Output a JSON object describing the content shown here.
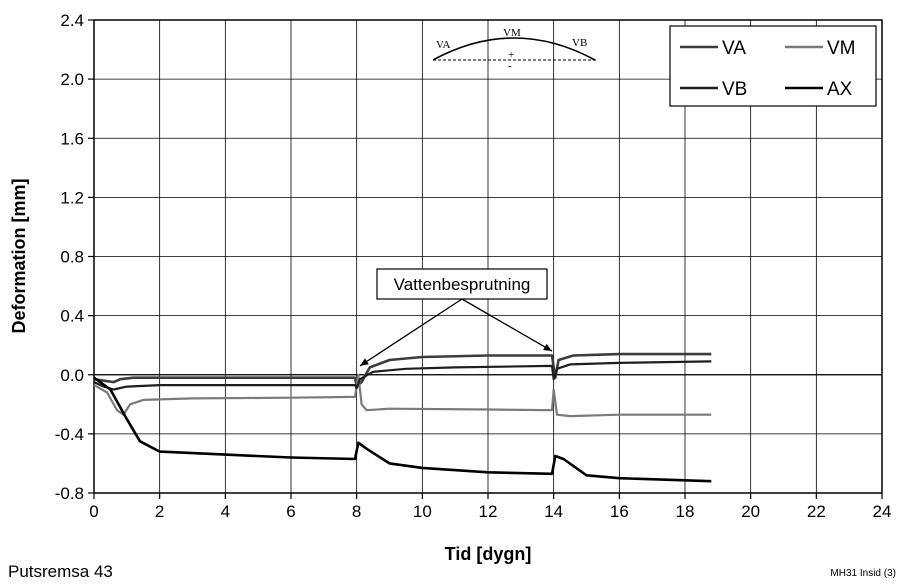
{
  "chart_data": {
    "type": "line",
    "title": "",
    "xlabel": "Tid [dygn]",
    "ylabel": "Deformation [mm]",
    "xlim": [
      0,
      24
    ],
    "ylim": [
      -0.8,
      2.4
    ],
    "xticks": [
      0,
      2,
      4,
      6,
      8,
      10,
      12,
      14,
      16,
      18,
      20,
      22,
      24
    ],
    "yticks": [
      -0.8,
      -0.4,
      0.0,
      0.4,
      0.8,
      1.2,
      1.6,
      2.0,
      2.4
    ],
    "ytick_labels": [
      "-0.8",
      "-0.4",
      "0.0",
      "0.4",
      "0.8",
      "1.2",
      "1.6",
      "2.0",
      "2.4"
    ],
    "grid": true,
    "legend_position": "top-right",
    "series": [
      {
        "name": "VA",
        "color": "#3c3c3c",
        "width": 2.6,
        "points": [
          [
            0,
            -0.03
          ],
          [
            0.3,
            -0.04
          ],
          [
            0.6,
            -0.05
          ],
          [
            0.8,
            -0.03
          ],
          [
            1.2,
            -0.02
          ],
          [
            4,
            -0.02
          ],
          [
            7.95,
            -0.02
          ],
          [
            8.0,
            -0.08
          ],
          [
            8.15,
            -0.05
          ],
          [
            8.4,
            0.05
          ],
          [
            9,
            0.1
          ],
          [
            10,
            0.12
          ],
          [
            12,
            0.13
          ],
          [
            13.95,
            0.13
          ],
          [
            14.0,
            0.05
          ],
          [
            14.05,
            -0.02
          ],
          [
            14.15,
            0.1
          ],
          [
            14.6,
            0.13
          ],
          [
            16,
            0.14
          ],
          [
            18.8,
            0.14
          ]
        ]
      },
      {
        "name": "VM",
        "color": "#7a7a7a",
        "width": 2.2,
        "points": [
          [
            0,
            -0.07
          ],
          [
            0.4,
            -0.12
          ],
          [
            0.7,
            -0.24
          ],
          [
            0.9,
            -0.27
          ],
          [
            1.1,
            -0.2
          ],
          [
            1.5,
            -0.17
          ],
          [
            3,
            -0.16
          ],
          [
            6,
            -0.155
          ],
          [
            7.95,
            -0.15
          ],
          [
            8.05,
            0.0
          ],
          [
            8.15,
            -0.2
          ],
          [
            8.3,
            -0.24
          ],
          [
            9,
            -0.23
          ],
          [
            12,
            -0.235
          ],
          [
            13.95,
            -0.24
          ],
          [
            14.0,
            -0.1
          ],
          [
            14.1,
            -0.27
          ],
          [
            14.5,
            -0.28
          ],
          [
            16,
            -0.27
          ],
          [
            18.8,
            -0.27
          ]
        ]
      },
      {
        "name": "VB",
        "color": "#1e1e1e",
        "width": 2.2,
        "points": [
          [
            0,
            -0.05
          ],
          [
            0.3,
            -0.08
          ],
          [
            0.6,
            -0.1
          ],
          [
            1.0,
            -0.08
          ],
          [
            2,
            -0.07
          ],
          [
            5,
            -0.07
          ],
          [
            7.95,
            -0.07
          ],
          [
            8.0,
            -0.09
          ],
          [
            8.1,
            -0.03
          ],
          [
            8.5,
            0.02
          ],
          [
            9.5,
            0.04
          ],
          [
            11,
            0.05
          ],
          [
            13.95,
            0.06
          ],
          [
            14.0,
            -0.03
          ],
          [
            14.1,
            0.04
          ],
          [
            14.5,
            0.07
          ],
          [
            16,
            0.08
          ],
          [
            18.8,
            0.09
          ]
        ]
      },
      {
        "name": "AX",
        "color": "#000000",
        "width": 2.6,
        "points": [
          [
            0,
            -0.02
          ],
          [
            0.5,
            -0.1
          ],
          [
            1.0,
            -0.3
          ],
          [
            1.4,
            -0.45
          ],
          [
            2,
            -0.52
          ],
          [
            4,
            -0.54
          ],
          [
            6,
            -0.56
          ],
          [
            7.95,
            -0.57
          ],
          [
            8.05,
            -0.46
          ],
          [
            8.3,
            -0.5
          ],
          [
            9,
            -0.6
          ],
          [
            10,
            -0.63
          ],
          [
            12,
            -0.66
          ],
          [
            13.95,
            -0.67
          ],
          [
            14.05,
            -0.55
          ],
          [
            14.3,
            -0.57
          ],
          [
            15,
            -0.68
          ],
          [
            16,
            -0.7
          ],
          [
            18.8,
            -0.72
          ]
        ]
      }
    ],
    "annotations": [
      {
        "text": "Vattenbesprutning",
        "targets": [
          [
            8.1,
            0.06
          ],
          [
            13.95,
            0.16
          ]
        ]
      }
    ],
    "inset": {
      "labels": [
        "VA",
        "VM",
        "VB"
      ],
      "plus": "+",
      "minus": "-"
    }
  },
  "footer": {
    "left": "Putsremsa 43",
    "right": "MH31 Insid (3)"
  }
}
